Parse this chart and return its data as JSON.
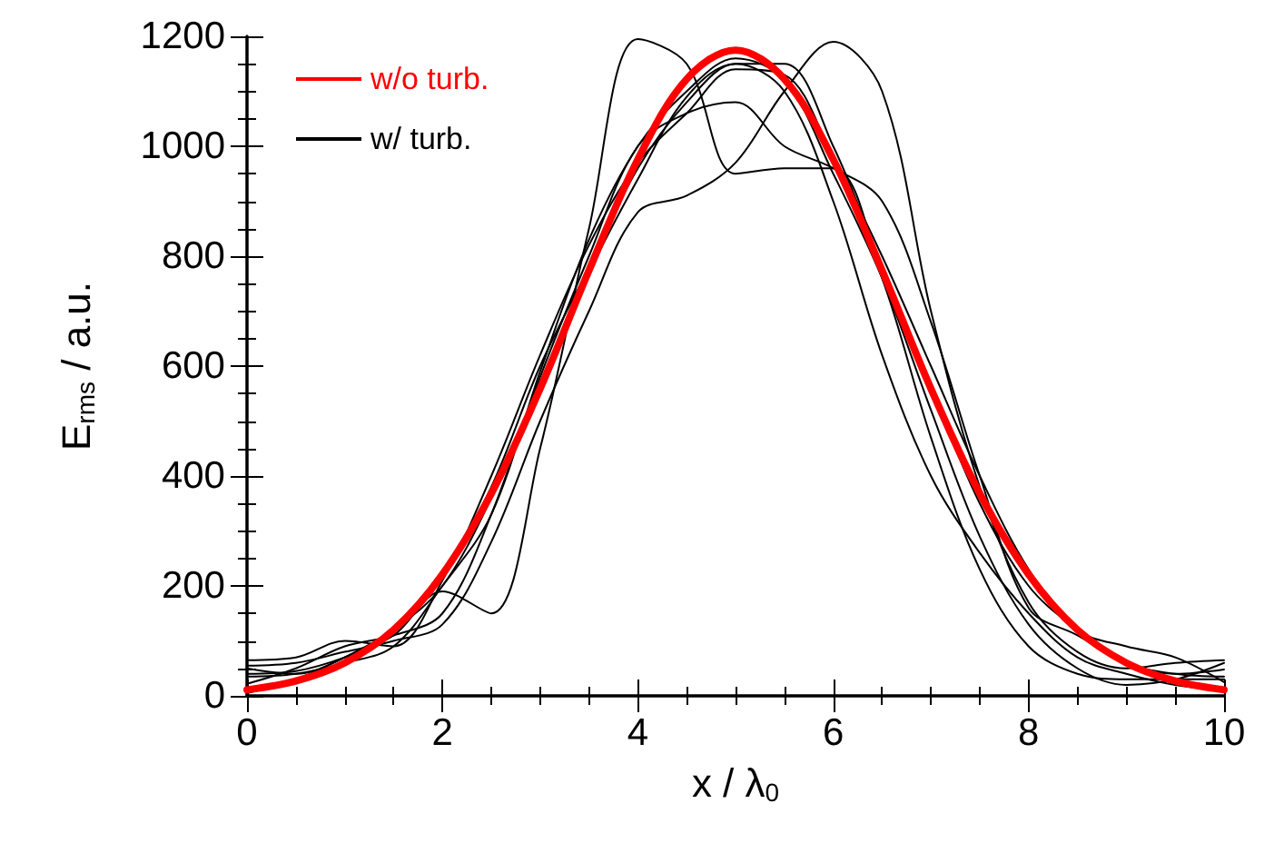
{
  "chart_data": {
    "type": "line",
    "xlabel": "x / λ$_{0}$",
    "ylabel": "E$_{rms}$ / a.u.",
    "x": [
      0,
      0.5,
      1,
      1.5,
      2,
      2.5,
      3,
      3.5,
      4,
      4.5,
      5,
      5.5,
      6,
      6.5,
      7,
      7.5,
      8,
      8.5,
      9,
      9.5,
      10
    ],
    "xlim": [
      0,
      10
    ],
    "xticks": [
      0,
      2,
      4,
      6,
      8,
      10
    ],
    "ylim": [
      0,
      1200
    ],
    "yticks": [
      0,
      200,
      400,
      600,
      800,
      1000,
      1200
    ],
    "grid": false,
    "legend": "top left",
    "marker": "none",
    "line_style": "solid",
    "series": [
      {
        "name": "w/o turb.",
        "color": "#ff0000",
        "values": [
          11,
          27,
          60,
          120,
          221,
          368,
          559,
          774,
          976,
          1122,
          1175,
          1122,
          976,
          774,
          559,
          368,
          221,
          120,
          60,
          27,
          11
        ]
      },
      {
        "name": "w/ turb.",
        "color": "#000000",
        "values": [
          40,
          45,
          70,
          110,
          190,
          150,
          450,
          850,
          1195,
          1150,
          950,
          960,
          960,
          760,
          470,
          230,
          90,
          40,
          30,
          30,
          30
        ]
      },
      {
        "color": "#000000",
        "values": [
          55,
          60,
          80,
          100,
          130,
          280,
          500,
          700,
          880,
          910,
          970,
          1100,
          1190,
          1100,
          700,
          380,
          170,
          80,
          50,
          60,
          65
        ]
      },
      {
        "color": "#000000",
        "values": [
          22,
          50,
          90,
          110,
          150,
          330,
          580,
          800,
          1000,
          1060,
          1080,
          1000,
          960,
          900,
          680,
          400,
          160,
          110,
          60,
          40,
          48
        ]
      },
      {
        "color": "#000000",
        "values": [
          50,
          40,
          70,
          120,
          220,
          380,
          600,
          780,
          960,
          1080,
          1150,
          1100,
          900,
          620,
          400,
          260,
          150,
          70,
          40,
          20,
          10
        ]
      },
      {
        "color": "#000000",
        "values": [
          35,
          40,
          60,
          90,
          200,
          330,
          590,
          830,
          1000,
          1100,
          1160,
          1120,
          950,
          760,
          520,
          290,
          130,
          50,
          20,
          30,
          60
        ]
      },
      {
        "color": "#000000",
        "values": [
          5,
          30,
          70,
          120,
          200,
          360,
          570,
          770,
          940,
          1090,
          1150,
          1150,
          1000,
          780,
          560,
          350,
          200,
          120,
          60,
          40,
          35
        ]
      },
      {
        "color": "#000000",
        "values": [
          65,
          70,
          100,
          90,
          210,
          400,
          620,
          820,
          970,
          1060,
          1140,
          1130,
          980,
          800,
          600,
          400,
          230,
          120,
          90,
          70,
          25
        ]
      }
    ]
  }
}
